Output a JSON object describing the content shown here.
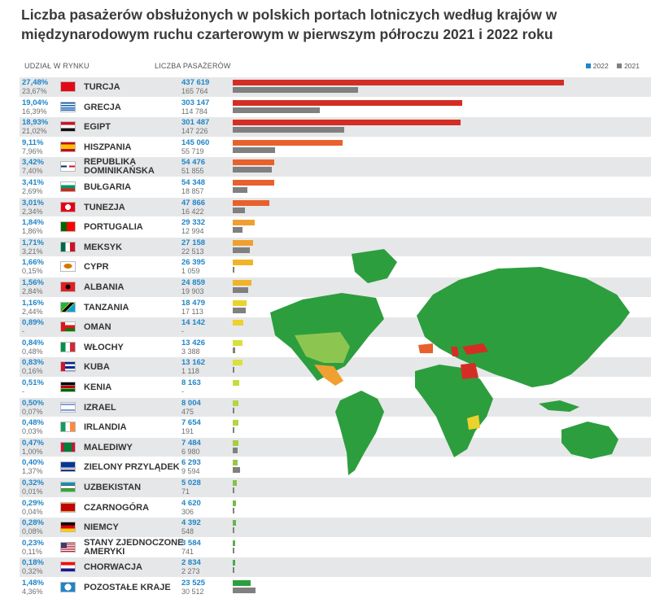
{
  "title": "Liczba pasażerów obsłużonych w polskich portach lotniczych według krajów w międzynarodowym ruchu czarterowym w pierwszym półroczu 2021 i 2022 roku",
  "headers": {
    "share": "UDZIAŁ W RYNKU",
    "passengers": "LICZBA PASAŻERÓW"
  },
  "legend": [
    {
      "label": "2022",
      "color": "#1f85c8"
    },
    {
      "label": "2021",
      "color": "#808080"
    }
  ],
  "colors": {
    "bar2021": "#808080",
    "map_base": "#2c9e3e"
  },
  "chart_data": {
    "type": "bar",
    "orientation": "horizontal",
    "title": "Liczba pasażerów obsłużonych w polskich portach lotniczych według krajów w międzynarodowym ruchu czarterowym w pierwszym półroczu 2021 i 2022 roku",
    "xlim": [
      0,
      450000
    ],
    "legend_position": "top-right",
    "series": [
      {
        "name": "2022"
      },
      {
        "name": "2021"
      }
    ],
    "rows": [
      {
        "country": "TURCJA",
        "share2022": "27,48%",
        "share2021": "23,67%",
        "p2022": "437 619",
        "p2021": "165 764",
        "v2022": 437619,
        "v2021": 165764,
        "color": "#d42e24",
        "flag": "tr"
      },
      {
        "country": "GRECJA",
        "share2022": "19,04%",
        "share2021": "16,39%",
        "p2022": "303 147",
        "p2021": "114 784",
        "v2022": 303147,
        "v2021": 114784,
        "color": "#d42e24",
        "flag": "gr"
      },
      {
        "country": "EGIPT",
        "share2022": "18,93%",
        "share2021": "21,02%",
        "p2022": "301 487",
        "p2021": "147 226",
        "v2022": 301487,
        "v2021": 147226,
        "color": "#d42e24",
        "flag": "eg"
      },
      {
        "country": "HISZPANIA",
        "share2022": "9,11%",
        "share2021": "7,96%",
        "p2022": "145 060",
        "p2021": "55 719",
        "v2022": 145060,
        "v2021": 55719,
        "color": "#e8612c",
        "flag": "es"
      },
      {
        "country": "REPUBLIKA DOMINIKAŃSKA",
        "share2022": "3,42%",
        "share2021": "7,40%",
        "p2022": "54 476",
        "p2021": "51 855",
        "v2022": 54476,
        "v2021": 51855,
        "color": "#e8612c",
        "flag": "do"
      },
      {
        "country": "BUŁGARIA",
        "share2022": "3,41%",
        "share2021": "2,69%",
        "p2022": "54 348",
        "p2021": "18 857",
        "v2022": 54348,
        "v2021": 18857,
        "color": "#e8612c",
        "flag": "bg"
      },
      {
        "country": "TUNEZJA",
        "share2022": "3,01%",
        "share2021": "2,34%",
        "p2022": "47 866",
        "p2021": "16 422",
        "v2022": 47866,
        "v2021": 16422,
        "color": "#e8612c",
        "flag": "tn"
      },
      {
        "country": "PORTUGALIA",
        "share2022": "1,84%",
        "share2021": "1,86%",
        "p2022": "29 332",
        "p2021": "12 994",
        "v2022": 29332,
        "v2021": 12994,
        "color": "#f0a030",
        "flag": "pt"
      },
      {
        "country": "MEKSYK",
        "share2022": "1,71%",
        "share2021": "3,21%",
        "p2022": "27 158",
        "p2021": "22 513",
        "v2022": 27158,
        "v2021": 22513,
        "color": "#f0a030",
        "flag": "mx"
      },
      {
        "country": "CYPR",
        "share2022": "1,66%",
        "share2021": "0,15%",
        "p2022": "26 395",
        "p2021": "1 059",
        "v2022": 26395,
        "v2021": 1059,
        "color": "#f0b428",
        "flag": "cy"
      },
      {
        "country": "ALBANIA",
        "share2022": "1,56%",
        "share2021": "2,84%",
        "p2022": "24 859",
        "p2021": "19 903",
        "v2022": 24859,
        "v2021": 19903,
        "color": "#f0b428",
        "flag": "al"
      },
      {
        "country": "TANZANIA",
        "share2022": "1,16%",
        "share2021": "2,44%",
        "p2022": "18 479",
        "p2021": "17 113",
        "v2022": 18479,
        "v2021": 17113,
        "color": "#ecd22c",
        "flag": "tz"
      },
      {
        "country": "OMAN",
        "share2022": "0,89%",
        "share2021": "-",
        "p2022": "14 142",
        "p2021": "-",
        "v2022": 14142,
        "v2021": 0,
        "color": "#ecd22c",
        "flag": "om"
      },
      {
        "country": "WŁOCHY",
        "share2022": "0,84%",
        "share2021": "0,48%",
        "p2022": "13 426",
        "p2021": "3 388",
        "v2022": 13426,
        "v2021": 3388,
        "color": "#d9e13a",
        "flag": "it"
      },
      {
        "country": "KUBA",
        "share2022": "0,83%",
        "share2021": "0,16%",
        "p2022": "13 162",
        "p2021": "1 118",
        "v2022": 13162,
        "v2021": 1118,
        "color": "#d9e13a",
        "flag": "cu"
      },
      {
        "country": "KENIA",
        "share2022": "0,51%",
        "share2021": "-",
        "p2022": "8 163",
        "p2021": "-",
        "v2022": 8163,
        "v2021": 0,
        "color": "#c5dc3c",
        "flag": "ke"
      },
      {
        "country": "IZRAEL",
        "share2022": "0,50%",
        "share2021": "0,07%",
        "p2022": "8 004",
        "p2021": "475",
        "v2022": 8004,
        "v2021": 475,
        "color": "#b4d640",
        "flag": "il"
      },
      {
        "country": "IRLANDIA",
        "share2022": "0,48%",
        "share2021": "0,03%",
        "p2022": "7 654",
        "p2021": "191",
        "v2022": 7654,
        "v2021": 191,
        "color": "#b4d640",
        "flag": "ie"
      },
      {
        "country": "MALEDIWY",
        "share2022": "0,47%",
        "share2021": "1,00%",
        "p2022": "7 484",
        "p2021": "6 980",
        "v2022": 7484,
        "v2021": 6980,
        "color": "#a4cf44",
        "flag": "mv"
      },
      {
        "country": "ZIELONY PRZYLĄDEK",
        "share2022": "0,40%",
        "share2021": "1,37%",
        "p2022": "6 293",
        "p2021": "9 594",
        "v2022": 6293,
        "v2021": 9594,
        "color": "#94c846",
        "flag": "cv"
      },
      {
        "country": "UZBEKISTAN",
        "share2022": "0,32%",
        "share2021": "0,01%",
        "p2022": "5 028",
        "p2021": "71",
        "v2022": 5028,
        "v2021": 71,
        "color": "#84c248",
        "flag": "uz"
      },
      {
        "country": "CZARNOGÓRA",
        "share2022": "0,29%",
        "share2021": "0,04%",
        "p2022": "4 620",
        "p2021": "306",
        "v2022": 4620,
        "v2021": 306,
        "color": "#74bc4a",
        "flag": "me"
      },
      {
        "country": "NIEMCY",
        "share2022": "0,28%",
        "share2021": "0,08%",
        "p2022": "4 392",
        "p2021": "548",
        "v2022": 4392,
        "v2021": 548,
        "color": "#64b64b",
        "flag": "de"
      },
      {
        "country": "STANY ZJEDNOCZONE AMERYKI",
        "share2022": "0,23%",
        "share2021": "0,11%",
        "p2022": "3 584",
        "p2021": "741",
        "v2022": 3584,
        "v2021": 741,
        "color": "#56b04b",
        "flag": "us"
      },
      {
        "country": "CHORWACJA",
        "share2022": "0,18%",
        "share2021": "0,32%",
        "p2022": "2 834",
        "p2021": "2 273",
        "v2022": 2834,
        "v2021": 2273,
        "color": "#48aa4a",
        "flag": "hr"
      },
      {
        "country": "POZOSTAŁE KRAJE",
        "share2022": "1,48%",
        "share2021": "4,36%",
        "p2022": "23 525",
        "p2021": "30 512",
        "v2022": 23525,
        "v2021": 30512,
        "color": "#2c9e3e",
        "flag": "world"
      }
    ]
  }
}
